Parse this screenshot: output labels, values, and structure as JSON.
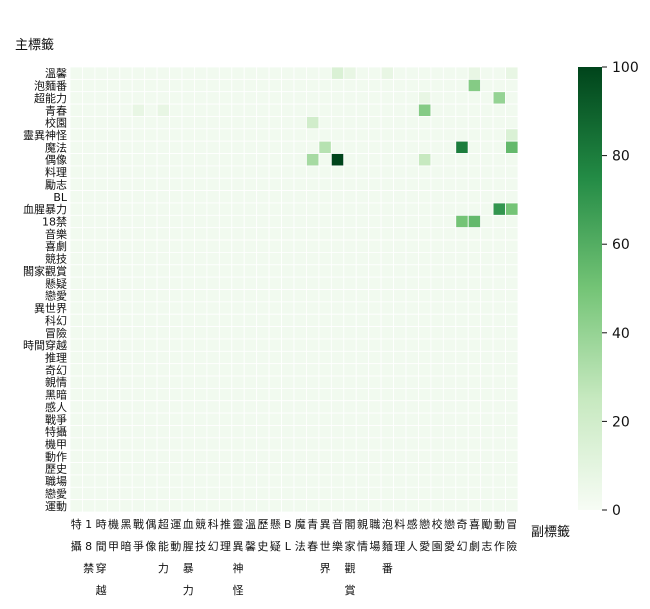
{
  "chart_data": {
    "type": "heatmap",
    "ylabel": "主標籤",
    "xlabel": "副標籤",
    "rows": [
      "溫馨",
      "泡麵番",
      "超能力",
      "青春",
      "校園",
      "靈異神怪",
      "魔法",
      "偶像",
      "料理",
      "勵志",
      "BL",
      "血腥暴力",
      "18禁",
      "音樂",
      "喜劇",
      "競技",
      "閣家觀賞",
      "懸疑",
      "戀愛",
      "異世界",
      "科幻",
      "冒險",
      "時間穿越",
      "推理",
      "奇幻",
      "親情",
      "黑暗",
      "感人",
      "戰爭",
      "特攝",
      "機甲",
      "動作",
      "歷史",
      "職場",
      "戀愛",
      "運動"
    ],
    "columns": [
      "特攝",
      "18禁",
      "時間穿越",
      "機甲",
      "黑暗",
      "戰爭",
      "偶像",
      "超能力",
      "運動",
      "血腥暴力",
      "競技",
      "科幻",
      "推理",
      "靈異神怪",
      "溫馨",
      "歷史",
      "懸疑",
      "BL",
      "魔法",
      "青春",
      "異世界",
      "音樂",
      "閣家觀賞",
      "親情",
      "職場",
      "泡麵番",
      "料理",
      "感人",
      "戀愛",
      "校園",
      "戀愛",
      "奇幻",
      "喜劇",
      "勵志",
      "動作",
      "冒險"
    ],
    "x_tick_labels": [
      "特攝",
      "18禁",
      "時間穿越",
      "機甲",
      "黑暗",
      "戰爭",
      "偶像",
      "超能力",
      "運動",
      "血腥暴力",
      "競技",
      "科幻",
      "推理",
      "靈異神怪",
      "溫馨",
      "歷史",
      "懸疑",
      "BL",
      "魔法",
      "青春",
      "異世界",
      "音樂",
      "閣家觀賞",
      "親情",
      "職場",
      "泡麵番",
      "料理",
      "感人",
      "戀愛",
      "校園",
      "戀愛",
      "奇幻",
      "喜劇",
      "勵志",
      "動作",
      "冒險"
    ],
    "y_tick_labels": [
      "溫馨",
      "泡麵番",
      "超能力",
      "青春",
      "校園",
      "靈異神怪",
      "魔法",
      "偶像",
      "料理",
      "勵志",
      "BL",
      "血腥暴力",
      "18禁",
      "音樂",
      "喜劇",
      "競技",
      "閣家觀賞",
      "懸疑",
      "戀愛",
      "異世界",
      "科幻",
      "冒險",
      "時間穿越",
      "推理",
      "奇幻",
      "親情",
      "黑暗",
      "感人",
      "戰爭",
      "特攝",
      "機甲",
      "動作",
      "歷史",
      "職場",
      "戀愛",
      "運動"
    ],
    "colorbar_ticks": [
      0,
      20,
      40,
      60,
      80,
      100
    ],
    "vmin": 0,
    "vmax": 100,
    "colormap": "Greens",
    "values": [
      [
        3,
        3,
        3,
        3,
        3,
        3,
        3,
        3,
        3,
        3,
        3,
        3,
        3,
        3,
        3,
        3,
        3,
        3,
        3,
        3,
        3,
        15,
        8,
        3,
        3,
        8,
        3,
        3,
        3,
        3,
        3,
        3,
        8,
        3,
        3,
        8
      ],
      [
        3,
        3,
        3,
        3,
        3,
        3,
        3,
        3,
        3,
        3,
        3,
        3,
        3,
        3,
        3,
        3,
        3,
        3,
        3,
        3,
        3,
        3,
        3,
        3,
        3,
        3,
        3,
        3,
        3,
        3,
        3,
        3,
        45,
        3,
        3,
        3
      ],
      [
        3,
        3,
        3,
        3,
        3,
        3,
        3,
        3,
        3,
        3,
        3,
        3,
        3,
        3,
        3,
        3,
        3,
        3,
        3,
        3,
        3,
        3,
        3,
        3,
        3,
        3,
        3,
        3,
        8,
        3,
        3,
        3,
        3,
        3,
        40,
        3
      ],
      [
        3,
        3,
        3,
        3,
        3,
        8,
        3,
        8,
        3,
        3,
        3,
        3,
        3,
        3,
        3,
        3,
        3,
        3,
        3,
        3,
        3,
        3,
        3,
        3,
        3,
        3,
        3,
        3,
        45,
        3,
        3,
        3,
        3,
        3,
        3,
        3
      ],
      [
        3,
        3,
        3,
        3,
        3,
        3,
        3,
        3,
        3,
        3,
        3,
        3,
        3,
        3,
        3,
        3,
        3,
        3,
        3,
        20,
        3,
        3,
        3,
        3,
        3,
        3,
        3,
        3,
        3,
        3,
        3,
        3,
        3,
        3,
        3,
        3
      ],
      [
        3,
        3,
        3,
        3,
        3,
        3,
        3,
        3,
        3,
        3,
        3,
        3,
        3,
        3,
        3,
        3,
        3,
        3,
        3,
        3,
        3,
        3,
        3,
        3,
        3,
        3,
        3,
        3,
        3,
        3,
        3,
        3,
        3,
        3,
        3,
        15
      ],
      [
        3,
        3,
        3,
        3,
        3,
        3,
        3,
        3,
        3,
        3,
        3,
        3,
        3,
        3,
        3,
        3,
        3,
        3,
        3,
        3,
        30,
        3,
        3,
        3,
        3,
        3,
        3,
        3,
        3,
        3,
        3,
        80,
        3,
        3,
        3,
        55
      ],
      [
        3,
        3,
        3,
        3,
        3,
        3,
        3,
        3,
        3,
        3,
        3,
        3,
        3,
        3,
        3,
        3,
        3,
        3,
        3,
        35,
        3,
        100,
        3,
        3,
        3,
        3,
        3,
        3,
        25,
        3,
        3,
        3,
        3,
        3,
        3,
        3
      ],
      [
        3,
        3,
        3,
        3,
        3,
        3,
        3,
        3,
        3,
        3,
        3,
        3,
        3,
        3,
        3,
        3,
        3,
        3,
        3,
        3,
        3,
        3,
        3,
        3,
        3,
        3,
        3,
        3,
        3,
        3,
        3,
        3,
        3,
        3,
        3,
        3
      ],
      [
        3,
        3,
        3,
        3,
        3,
        3,
        3,
        3,
        3,
        3,
        3,
        3,
        3,
        3,
        3,
        3,
        3,
        3,
        3,
        3,
        3,
        3,
        3,
        3,
        3,
        3,
        3,
        3,
        3,
        3,
        3,
        3,
        3,
        3,
        3,
        3
      ],
      [
        3,
        3,
        3,
        3,
        3,
        3,
        3,
        3,
        3,
        3,
        3,
        3,
        3,
        3,
        3,
        3,
        3,
        3,
        3,
        3,
        3,
        3,
        3,
        3,
        3,
        3,
        3,
        3,
        3,
        3,
        3,
        3,
        3,
        3,
        3,
        3
      ],
      [
        3,
        3,
        3,
        3,
        3,
        3,
        3,
        3,
        3,
        3,
        3,
        3,
        3,
        3,
        3,
        3,
        3,
        3,
        3,
        3,
        3,
        3,
        3,
        3,
        3,
        3,
        3,
        3,
        3,
        3,
        3,
        3,
        3,
        3,
        70,
        50
      ],
      [
        3,
        3,
        3,
        3,
        3,
        3,
        3,
        3,
        3,
        3,
        3,
        3,
        3,
        3,
        3,
        3,
        3,
        3,
        3,
        3,
        3,
        3,
        3,
        3,
        3,
        3,
        3,
        3,
        3,
        3,
        3,
        50,
        55,
        3,
        3,
        3
      ],
      [
        3,
        3,
        3,
        3,
        3,
        3,
        3,
        3,
        3,
        3,
        3,
        3,
        3,
        3,
        3,
        3,
        3,
        3,
        3,
        3,
        3,
        3,
        3,
        3,
        3,
        3,
        3,
        3,
        3,
        3,
        3,
        3,
        3,
        3,
        3,
        3
      ],
      [
        3,
        3,
        3,
        3,
        3,
        3,
        3,
        3,
        3,
        3,
        3,
        3,
        3,
        3,
        3,
        3,
        3,
        3,
        3,
        3,
        3,
        3,
        3,
        3,
        3,
        3,
        3,
        3,
        3,
        3,
        3,
        3,
        3,
        3,
        3,
        3
      ],
      [
        3,
        3,
        3,
        3,
        3,
        3,
        3,
        3,
        3,
        3,
        3,
        3,
        3,
        3,
        3,
        3,
        3,
        3,
        3,
        3,
        3,
        3,
        3,
        3,
        3,
        3,
        3,
        3,
        3,
        3,
        3,
        3,
        3,
        3,
        3,
        3
      ],
      [
        3,
        3,
        3,
        3,
        3,
        3,
        3,
        3,
        3,
        3,
        3,
        3,
        3,
        3,
        3,
        3,
        3,
        3,
        3,
        3,
        3,
        3,
        3,
        3,
        3,
        3,
        3,
        3,
        3,
        3,
        3,
        3,
        3,
        3,
        3,
        3
      ],
      [
        3,
        3,
        3,
        3,
        3,
        3,
        3,
        3,
        3,
        3,
        3,
        3,
        3,
        3,
        3,
        3,
        3,
        3,
        3,
        3,
        3,
        3,
        3,
        3,
        3,
        3,
        3,
        3,
        3,
        3,
        3,
        3,
        3,
        3,
        3,
        3
      ],
      [
        3,
        3,
        3,
        3,
        3,
        3,
        3,
        3,
        3,
        3,
        3,
        3,
        3,
        3,
        3,
        3,
        3,
        3,
        3,
        3,
        3,
        3,
        3,
        3,
        3,
        3,
        3,
        3,
        3,
        3,
        3,
        3,
        3,
        3,
        3,
        3
      ],
      [
        3,
        3,
        3,
        3,
        3,
        3,
        3,
        3,
        3,
        3,
        3,
        3,
        3,
        3,
        3,
        3,
        3,
        3,
        3,
        3,
        3,
        3,
        3,
        3,
        3,
        3,
        3,
        3,
        3,
        3,
        3,
        3,
        3,
        3,
        3,
        3
      ],
      [
        3,
        3,
        3,
        3,
        3,
        3,
        3,
        3,
        3,
        3,
        3,
        3,
        3,
        3,
        3,
        3,
        3,
        3,
        3,
        3,
        3,
        3,
        3,
        3,
        3,
        3,
        3,
        3,
        3,
        3,
        3,
        3,
        3,
        3,
        3,
        3
      ],
      [
        3,
        3,
        3,
        3,
        3,
        3,
        3,
        3,
        3,
        3,
        3,
        3,
        3,
        3,
        3,
        3,
        3,
        3,
        3,
        3,
        3,
        3,
        3,
        3,
        3,
        3,
        3,
        3,
        3,
        3,
        3,
        3,
        3,
        3,
        3,
        3
      ],
      [
        3,
        3,
        3,
        3,
        3,
        3,
        3,
        3,
        3,
        3,
        3,
        3,
        3,
        3,
        3,
        3,
        3,
        3,
        3,
        3,
        3,
        3,
        3,
        3,
        3,
        3,
        3,
        3,
        3,
        3,
        3,
        3,
        3,
        3,
        3,
        3
      ],
      [
        3,
        3,
        3,
        3,
        3,
        3,
        3,
        3,
        3,
        3,
        3,
        3,
        3,
        3,
        3,
        3,
        3,
        3,
        3,
        3,
        3,
        3,
        3,
        3,
        3,
        3,
        3,
        3,
        3,
        3,
        3,
        3,
        3,
        3,
        3,
        3
      ],
      [
        3,
        3,
        3,
        3,
        3,
        3,
        3,
        3,
        3,
        3,
        3,
        3,
        3,
        3,
        3,
        3,
        3,
        3,
        3,
        3,
        3,
        3,
        3,
        3,
        3,
        3,
        3,
        3,
        3,
        3,
        3,
        3,
        3,
        3,
        3,
        3
      ],
      [
        3,
        3,
        3,
        3,
        3,
        3,
        3,
        3,
        3,
        3,
        3,
        3,
        3,
        3,
        3,
        3,
        3,
        3,
        3,
        3,
        3,
        3,
        3,
        3,
        3,
        3,
        3,
        3,
        3,
        3,
        3,
        3,
        3,
        3,
        3,
        3
      ],
      [
        3,
        3,
        3,
        3,
        3,
        3,
        3,
        3,
        3,
        3,
        3,
        3,
        3,
        3,
        3,
        3,
        3,
        3,
        3,
        3,
        3,
        3,
        3,
        3,
        3,
        3,
        3,
        3,
        3,
        3,
        3,
        3,
        3,
        3,
        3,
        3
      ],
      [
        3,
        3,
        3,
        3,
        3,
        3,
        3,
        3,
        3,
        3,
        3,
        3,
        3,
        3,
        3,
        3,
        3,
        3,
        3,
        3,
        3,
        3,
        3,
        3,
        3,
        3,
        3,
        3,
        3,
        3,
        3,
        3,
        3,
        3,
        3,
        3
      ],
      [
        3,
        3,
        3,
        3,
        3,
        3,
        3,
        3,
        3,
        3,
        3,
        3,
        3,
        3,
        3,
        3,
        3,
        3,
        3,
        3,
        3,
        3,
        3,
        3,
        3,
        3,
        3,
        3,
        3,
        3,
        3,
        3,
        3,
        3,
        3,
        3
      ],
      [
        3,
        3,
        3,
        3,
        3,
        3,
        3,
        3,
        3,
        3,
        3,
        3,
        3,
        3,
        3,
        3,
        3,
        3,
        3,
        3,
        3,
        3,
        3,
        3,
        3,
        3,
        3,
        3,
        3,
        3,
        3,
        3,
        3,
        3,
        3,
        3
      ],
      [
        3,
        3,
        3,
        3,
        3,
        3,
        3,
        3,
        3,
        3,
        3,
        3,
        3,
        3,
        3,
        3,
        3,
        3,
        3,
        3,
        3,
        3,
        3,
        3,
        3,
        3,
        3,
        3,
        3,
        3,
        3,
        3,
        3,
        3,
        3,
        3
      ],
      [
        3,
        3,
        3,
        3,
        3,
        3,
        3,
        3,
        3,
        3,
        3,
        3,
        3,
        3,
        3,
        3,
        3,
        3,
        3,
        3,
        3,
        3,
        3,
        3,
        3,
        3,
        3,
        3,
        3,
        3,
        3,
        3,
        3,
        3,
        3,
        3
      ],
      [
        3,
        3,
        3,
        3,
        3,
        3,
        3,
        3,
        3,
        3,
        3,
        3,
        3,
        3,
        3,
        3,
        3,
        3,
        3,
        3,
        3,
        3,
        3,
        3,
        3,
        3,
        3,
        3,
        3,
        3,
        3,
        3,
        3,
        3,
        3,
        3
      ],
      [
        3,
        3,
        3,
        3,
        3,
        3,
        3,
        3,
        3,
        3,
        3,
        3,
        3,
        3,
        3,
        3,
        3,
        3,
        3,
        3,
        3,
        3,
        3,
        3,
        3,
        3,
        3,
        3,
        3,
        3,
        3,
        3,
        3,
        3,
        3,
        3
      ],
      [
        3,
        3,
        3,
        3,
        3,
        3,
        3,
        3,
        3,
        3,
        3,
        3,
        3,
        3,
        3,
        3,
        3,
        3,
        3,
        3,
        3,
        3,
        3,
        3,
        3,
        3,
        3,
        3,
        3,
        3,
        3,
        3,
        3,
        3,
        3,
        3
      ],
      [
        3,
        3,
        3,
        3,
        3,
        3,
        3,
        3,
        3,
        3,
        3,
        3,
        3,
        3,
        3,
        3,
        3,
        3,
        3,
        3,
        3,
        3,
        3,
        3,
        3,
        3,
        3,
        3,
        3,
        3,
        3,
        3,
        3,
        3,
        3,
        3
      ]
    ]
  }
}
